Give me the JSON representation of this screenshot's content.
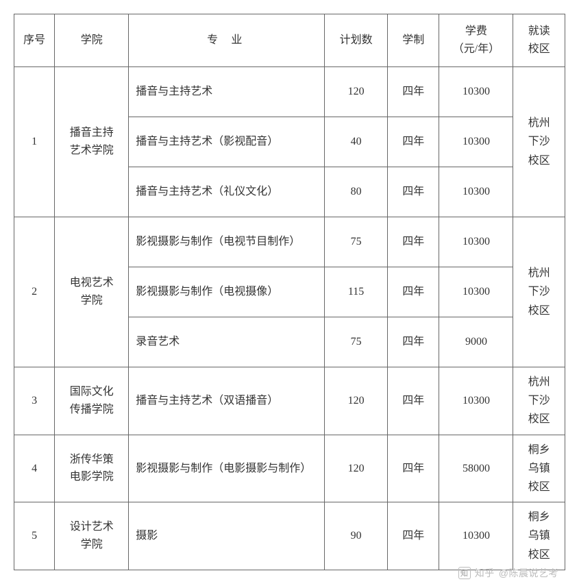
{
  "table": {
    "headers": {
      "index": "序号",
      "school": "学院",
      "major": "专业",
      "plan": "计划数",
      "years": "学制",
      "fee_l1": "学费",
      "fee_l2": "（元/年）",
      "campus_l1": "就读",
      "campus_l2": "校区"
    },
    "groups": [
      {
        "index": "1",
        "school_l1": "播音主持",
        "school_l2": "艺术学院",
        "campus_l1": "杭州",
        "campus_l2": "下沙",
        "campus_l3": "校区",
        "rows": [
          {
            "major": "播音与主持艺术",
            "plan": "120",
            "years": "四年",
            "fee": "10300"
          },
          {
            "major": "播音与主持艺术（影视配音）",
            "plan": "40",
            "years": "四年",
            "fee": "10300"
          },
          {
            "major": "播音与主持艺术（礼仪文化）",
            "plan": "80",
            "years": "四年",
            "fee": "10300"
          }
        ]
      },
      {
        "index": "2",
        "school_l1": "电视艺术",
        "school_l2": "学院",
        "campus_l1": "杭州",
        "campus_l2": "下沙",
        "campus_l3": "校区",
        "rows": [
          {
            "major": "影视摄影与制作（电视节目制作）",
            "plan": "75",
            "years": "四年",
            "fee": "10300"
          },
          {
            "major": "影视摄影与制作（电视摄像）",
            "plan": "115",
            "years": "四年",
            "fee": "10300"
          },
          {
            "major": "录音艺术",
            "plan": "75",
            "years": "四年",
            "fee": "9000"
          }
        ]
      },
      {
        "index": "3",
        "school_l1": "国际文化",
        "school_l2": "传播学院",
        "campus_l1": "杭州",
        "campus_l2": "下沙",
        "campus_l3": "校区",
        "rows": [
          {
            "major": "播音与主持艺术（双语播音）",
            "plan": "120",
            "years": "四年",
            "fee": "10300"
          }
        ]
      },
      {
        "index": "4",
        "school_l1": "浙传华策",
        "school_l2": "电影学院",
        "campus_l1": "桐乡",
        "campus_l2": "乌镇",
        "campus_l3": "校区",
        "rows": [
          {
            "major": "影视摄影与制作（电影摄影与制作）",
            "plan": "120",
            "years": "四年",
            "fee": "58000"
          }
        ]
      },
      {
        "index": "5",
        "school_l1": "设计艺术",
        "school_l2": "学院",
        "campus_l1": "桐乡",
        "campus_l2": "乌镇",
        "campus_l3": "校区",
        "rows": [
          {
            "major": "摄影",
            "plan": "90",
            "years": "四年",
            "fee": "10300"
          }
        ]
      }
    ]
  },
  "watermark": {
    "brand": "知乎",
    "author": "@陈晨说艺考"
  }
}
